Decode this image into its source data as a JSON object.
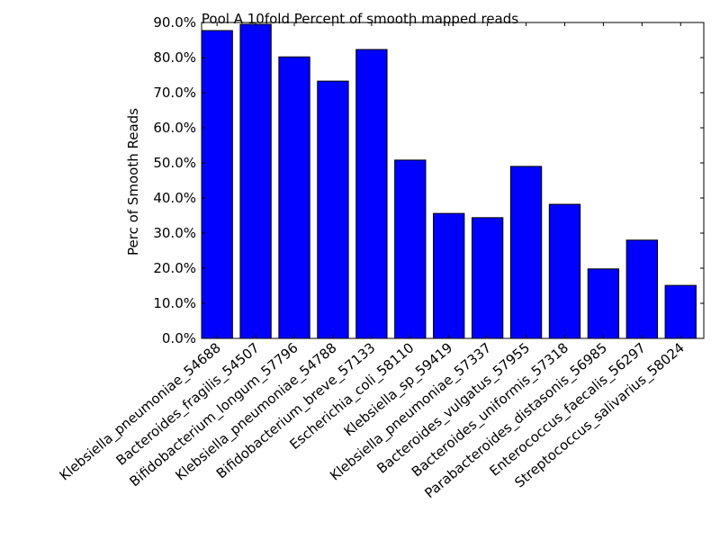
{
  "chart_data": {
    "type": "bar",
    "title": "Pool A 10fold Percent of smooth mapped reads",
    "ylabel": "Perc of Smooth Reads",
    "xlabel": "",
    "ylim": [
      0,
      90
    ],
    "yticks": [
      "0.0%",
      "10.0%",
      "20.0%",
      "30.0%",
      "40.0%",
      "50.0%",
      "60.0%",
      "70.0%",
      "80.0%",
      "90.0%"
    ],
    "categories": [
      "Klebsiella_pneumoniae_54688",
      "Bacteroides_fragilis_54507",
      "Bifidobacterium_longum_57796",
      "Klebsiella_pneumoniae_54788",
      "Bifidobacterium_breve_57133",
      "Escherichia_coli_58110",
      "Klebsiella_sp_59419",
      "Klebsiella_pneumoniae_57337",
      "Bacteroides_vulgatus_57955",
      "Bacteroides_uniformis_57318",
      "Parabacteroides_distasonis_56985",
      "Enterococcus_faecalis_56297",
      "Streptococcus_salivarius_58024"
    ],
    "values": [
      87.7,
      89.5,
      80.2,
      73.3,
      82.3,
      50.8,
      35.6,
      34.4,
      49.0,
      38.2,
      19.8,
      28.0,
      15.1
    ],
    "bar_color": "#0000ff",
    "grid": false
  }
}
